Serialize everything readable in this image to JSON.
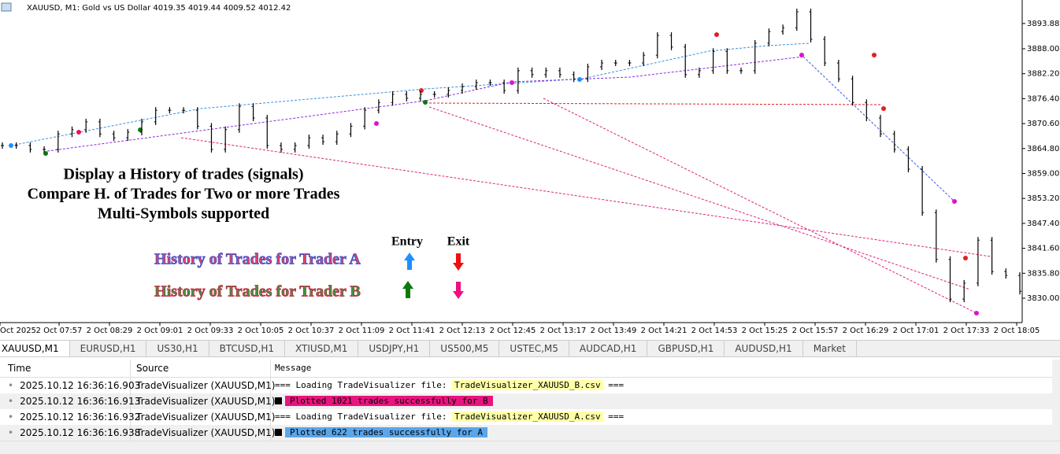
{
  "chart": {
    "title": "XAUUSD, M1:  Gold vs US Dollar  4019.35 4019.44 4009.52 4012.42",
    "ylim": [
      3824.33,
      3899.34
    ],
    "yticks": [
      3893.88,
      {
        "value": 3888,
        "label": "3888.00"
      },
      {
        "value": 3882.2,
        "label": "3882.20"
      },
      {
        "value": 3876.4,
        "label": "3876.40"
      },
      {
        "value": 3870.6,
        "label": "3870.60"
      },
      {
        "value": 3864.8,
        "label": "3864.80"
      },
      {
        "value": 3859,
        "label": "3859.00"
      },
      {
        "value": 3853.2,
        "label": "3853.20"
      },
      {
        "value": 3847.4,
        "label": "3847.40"
      },
      {
        "value": 3841.6,
        "label": "3841.60"
      },
      {
        "value": 3835.8,
        "label": "3835.80"
      },
      {
        "value": 3830,
        "label": "3830.00"
      }
    ],
    "xticks": [
      "Oct 2025",
      "2 Oct 07:57",
      "2 Oct 08:29",
      "2 Oct 09:01",
      "2 Oct 09:33",
      "2 Oct 10:05",
      "2 Oct 10:37",
      "2 Oct 11:09",
      "2 Oct 11:41",
      "2 Oct 12:13",
      "2 Oct 12:45",
      "2 Oct 13:17",
      "2 Oct 13:49",
      "2 Oct 14:21",
      "2 Oct 14:53",
      "2 Oct 15:25",
      "2 Oct 15:57",
      "2 Oct 16:29",
      "2 Oct 17:01",
      "2 Oct 17:33",
      "2 Oct 18:05"
    ],
    "price": {
      "values": [
        3865.5,
        3865.5,
        3864.6,
        3864.6,
        3868.2,
        3869.2,
        3871,
        3868.2,
        3867.3,
        3868.6,
        3871,
        3873.7,
        3873.7,
        3873.7,
        3870,
        3864.6,
        3869.2,
        3874.6,
        3871.9,
        3865.5,
        3864.6,
        3865.5,
        3867.3,
        3866.4,
        3868.2,
        3870,
        3873.7,
        3875.5,
        3877.4,
        3876.5,
        3877.4,
        3877.4,
        3878.3,
        3879.2,
        3880.1,
        3880.1,
        3878.3,
        3882.9,
        3882,
        3882.9,
        3882,
        3881,
        3883.8,
        3884.7,
        3884.7,
        3884.7,
        3886.5,
        3891.1,
        3888.4,
        3882,
        3882.9,
        3887.4,
        3882.9,
        3882.9,
        3889.3,
        3892,
        3892.9,
        3896.6,
        3890.2,
        3884.7,
        3881,
        3875.5,
        3871.9,
        3868.2,
        3864.6,
        3860,
        3849.9,
        3839,
        3829.8,
        3833.5,
        3843.5,
        3836.2,
        3835.3,
        3831.6
      ]
    }
  },
  "overlay": {
    "lines": [
      "Display a History of trades (signals)",
      "Compare H. of Trades for Two or more Trades",
      "Multi-Symbols supported"
    ],
    "entry": "Entry",
    "exit": "Exit",
    "trader_a": "History of Trades for Trader A",
    "trader_b": "History of Trades for Trader B"
  },
  "tabs": [
    "XAUUSD,M1",
    "EURUSD,H1",
    "US30,H1",
    "BTCUSD,H1",
    "XTIUSD,M1",
    "USDJPY,H1",
    "US500,M5",
    "USTEC,M5",
    "AUDCAD,H1",
    "GBPUSD,H1",
    "AUDUSD,H1",
    "Market"
  ],
  "log": {
    "headers": [
      "Time",
      "Source",
      "Message"
    ],
    "rows": [
      [
        "2025.10.12 16:36:16.903",
        "TradeVisualizer (XAUUSD,M1)",
        "=== Loading TradeVisualizer file: ",
        "TradeVisualizer_XAUUSD_B.csv",
        " ==="
      ],
      [
        "2025.10.12 16:36:16.913",
        "TradeVisualizer (XAUUSD,M1)",
        "Plotted 1021 trades successfully for B"
      ],
      [
        "2025.10.12 16:36:16.932",
        "TradeVisualizer (XAUUSD,M1)",
        "=== Loading TradeVisualizer file: ",
        "TradeVisualizer_XAUUSD_A.csv",
        " ==="
      ],
      [
        "2025.10.12 16:36:16.938",
        "TradeVisualizer (XAUUSD,M1)",
        "Plotted 622 trades successfully for A"
      ]
    ]
  }
}
